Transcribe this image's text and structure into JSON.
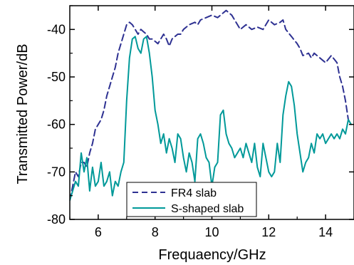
{
  "chart_data": {
    "type": "line",
    "title": "",
    "xlabel": "Frequaency/GHz",
    "ylabel": "Transmitted Power/dB",
    "xlim": [
      5,
      15
    ],
    "ylim": [
      -80,
      -35
    ],
    "grid": false,
    "x_ticks": [
      6,
      8,
      10,
      12,
      14
    ],
    "x_tick_labels": [
      "6",
      "8",
      "10",
      "12",
      "14"
    ],
    "y_ticks": [
      -80,
      -70,
      -60,
      -50,
      -40
    ],
    "y_tick_labels": [
      "-80",
      "-70",
      "-60",
      "-50",
      "-40"
    ],
    "legend_position": "bottom-center",
    "series": [
      {
        "name": "FR4 slab",
        "color": "#2e3192",
        "dash": "dashed",
        "x": [
          5.0,
          5.1,
          5.2,
          5.3,
          5.4,
          5.5,
          5.6,
          5.7,
          5.8,
          5.9,
          6.0,
          6.1,
          6.2,
          6.3,
          6.4,
          6.5,
          6.6,
          6.7,
          6.8,
          6.9,
          7.0,
          7.1,
          7.2,
          7.3,
          7.4,
          7.5,
          7.6,
          7.7,
          7.8,
          7.9,
          8.0,
          8.1,
          8.2,
          8.3,
          8.4,
          8.5,
          8.6,
          8.7,
          8.8,
          8.9,
          9.0,
          9.2,
          9.4,
          9.5,
          9.6,
          9.8,
          10.0,
          10.2,
          10.4,
          10.5,
          10.7,
          10.8,
          11.0,
          11.2,
          11.4,
          11.6,
          11.8,
          12.0,
          12.2,
          12.4,
          12.5,
          12.6,
          12.8,
          13.0,
          13.1,
          13.2,
          13.4,
          13.5,
          13.6,
          13.8,
          14.0,
          14.2,
          14.4,
          14.5,
          14.6,
          14.7,
          14.8,
          14.9
        ],
        "y": [
          -76,
          -73,
          -70,
          -71,
          -68,
          -68,
          -69,
          -66,
          -64,
          -61,
          -60,
          -59,
          -57,
          -54,
          -52,
          -50,
          -48,
          -45,
          -43,
          -41,
          -39,
          -38.5,
          -39,
          -40,
          -41,
          -40,
          -40.5,
          -41,
          -42,
          -42,
          -42.5,
          -43,
          -42,
          -41,
          -42,
          -43.5,
          -42,
          -41.5,
          -41,
          -41,
          -40,
          -39,
          -38.5,
          -39,
          -38,
          -37.5,
          -37,
          -37.5,
          -36.5,
          -36,
          -37,
          -38,
          -40,
          -39,
          -40,
          -39.5,
          -40,
          -38,
          -39,
          -38.5,
          -38,
          -40,
          -41.5,
          -43,
          -44,
          -45.5,
          -45,
          -46,
          -45,
          -46,
          -47,
          -45.5,
          -47,
          -50,
          -52,
          -55,
          -59,
          -60
        ]
      },
      {
        "name": "S-shaped slab",
        "color": "#009999",
        "dash": "solid",
        "x": [
          5.0,
          5.1,
          5.2,
          5.3,
          5.4,
          5.5,
          5.6,
          5.7,
          5.8,
          5.9,
          6.0,
          6.1,
          6.2,
          6.3,
          6.4,
          6.5,
          6.6,
          6.7,
          6.8,
          6.9,
          7.0,
          7.1,
          7.2,
          7.3,
          7.4,
          7.5,
          7.6,
          7.7,
          7.8,
          7.9,
          8.0,
          8.1,
          8.2,
          8.3,
          8.4,
          8.5,
          8.6,
          8.7,
          8.8,
          8.9,
          9.0,
          9.1,
          9.2,
          9.3,
          9.4,
          9.5,
          9.6,
          9.7,
          9.8,
          9.9,
          10.0,
          10.1,
          10.2,
          10.3,
          10.4,
          10.5,
          10.6,
          10.7,
          10.8,
          10.9,
          11.0,
          11.1,
          11.2,
          11.3,
          11.4,
          11.5,
          11.6,
          11.7,
          11.8,
          11.9,
          12.0,
          12.1,
          12.2,
          12.3,
          12.4,
          12.5,
          12.6,
          12.7,
          12.8,
          12.9,
          13.0,
          13.1,
          13.2,
          13.3,
          13.4,
          13.5,
          13.6,
          13.7,
          13.8,
          13.9,
          14.0,
          14.1,
          14.2,
          14.3,
          14.4,
          14.5,
          14.6,
          14.7,
          14.8,
          14.9
        ],
        "y": [
          -76,
          -74,
          -72,
          -73,
          -66,
          -70,
          -67,
          -74,
          -69,
          -73,
          -72,
          -68,
          -73,
          -72,
          -70,
          -75,
          -72,
          -73,
          -70,
          -68,
          -55,
          -46,
          -42,
          -41.5,
          -44,
          -45,
          -42,
          -41.5,
          -45,
          -50,
          -57,
          -60,
          -64,
          -62,
          -66,
          -63,
          -65,
          -68,
          -62,
          -63,
          -67,
          -70,
          -66,
          -68,
          -72,
          -63,
          -62,
          -64,
          -67,
          -68,
          -73,
          -69,
          -68,
          -58,
          -57,
          -62,
          -64,
          -65,
          -67,
          -66,
          -65,
          -67,
          -64,
          -66,
          -68,
          -64,
          -69,
          -71,
          -64,
          -67,
          -70,
          -71,
          -70,
          -64,
          -68,
          -58,
          -54,
          -51,
          -52,
          -56,
          -62,
          -66,
          -70,
          -68,
          -67,
          -64,
          -66,
          -62,
          -63,
          -62,
          -64,
          -63,
          -62,
          -63,
          -62,
          -63,
          -61,
          -62,
          -59,
          -60
        ]
      }
    ]
  }
}
